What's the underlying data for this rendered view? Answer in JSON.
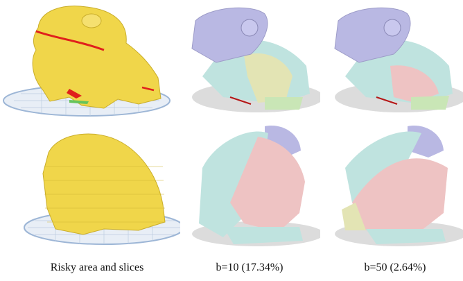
{
  "figure": {
    "panels": [
      {
        "id": "a",
        "content": "printed model with risky area (yellow + red)"
      },
      {
        "id": "b",
        "content": "segmented model b=10 (top view)"
      },
      {
        "id": "c",
        "content": "segmented model b=50 (top view)"
      },
      {
        "id": "d",
        "content": "sliced model (yellow)"
      },
      {
        "id": "e",
        "content": "segmented model b=10 (back view)"
      },
      {
        "id": "f",
        "content": "segmented model b=50 (back view)"
      }
    ],
    "captions": {
      "col1": "Risky area and slices",
      "col2": "b=10 (17.34%)",
      "col3": "b=50 (2.64%)"
    },
    "colors": {
      "print_yellow": "#f0d64a",
      "risk_red": "#e0201c",
      "seg_blue": "#b9b8e3",
      "seg_cyan": "#bfe3df",
      "seg_green": "#c9e6b6",
      "seg_pink": "#eec3c3",
      "seg_olive": "#e3e4b4",
      "plate_grid": "#c8d6e8"
    }
  }
}
